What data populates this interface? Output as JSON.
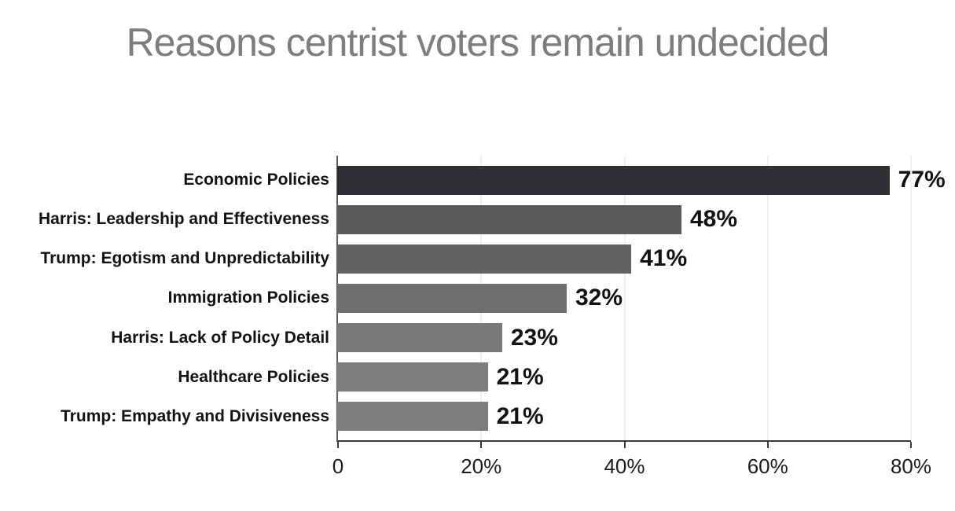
{
  "title": "Reasons centrist voters remain undecided",
  "chart_data": {
    "type": "bar",
    "orientation": "horizontal",
    "title": "Reasons centrist voters remain undecided",
    "categories": [
      "Economic Policies",
      "Harris: Leadership and Effectiveness",
      "Trump: Egotism and Unpredictability",
      "Immigration Policies",
      "Harris: Lack of Policy Detail",
      "Healthcare Policies",
      "Trump: Empathy and Divisiveness"
    ],
    "values": [
      77,
      48,
      41,
      32,
      23,
      21,
      21
    ],
    "value_labels": [
      "77%",
      "48%",
      "41%",
      "32%",
      "23%",
      "21%",
      "21%"
    ],
    "bar_colors": [
      "#303134",
      "#5a5b5d",
      "#626365",
      "#6e6f71",
      "#78797b",
      "#7c7d7f",
      "#7c7d7f"
    ],
    "xlim": [
      0,
      80
    ],
    "x_ticks": [
      {
        "value": 0,
        "label": "0"
      },
      {
        "value": 20,
        "label": "20%"
      },
      {
        "value": 40,
        "label": "40%"
      },
      {
        "value": 60,
        "label": "60%"
      },
      {
        "value": 80,
        "label": "80%"
      }
    ],
    "xlabel": "",
    "ylabel": "",
    "grid": "vertical-light",
    "legend_position": "none"
  },
  "style": {
    "title_color": "#7d7d7d",
    "category_label_color": "#121212",
    "value_label_color": "#121212",
    "tick_label_color": "#1c1c1c",
    "x_axis_color": "#3a3a3a",
    "y_axis_color": "#5e5e5e",
    "gridline_color": "#e2e2e2",
    "background_color": "#ffffff"
  }
}
